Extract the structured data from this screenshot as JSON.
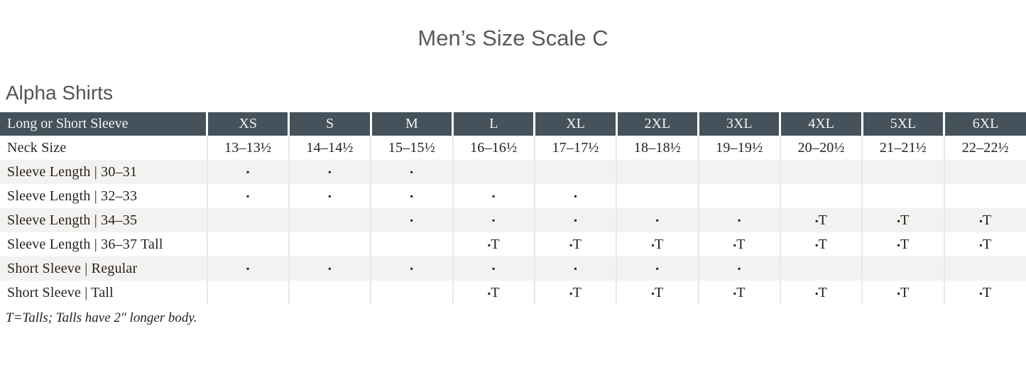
{
  "title": "Men’s Size Scale C",
  "section_heading": "Alpha Shirts",
  "footnote": "T=Talls; Talls have 2″ longer body.",
  "colors": {
    "header_bg": "#45525c",
    "header_text": "#f4f3f0",
    "row_alt_bg": "#f4f2f0",
    "grid_line": "#eae8e5",
    "heading_text": "#58595b",
    "body_text": "#26221e"
  },
  "legend": {
    "dot_mark": "▪",
    "tall_mark": "▪T"
  },
  "table": {
    "corner_label": "Long or Short Sleeve",
    "columns": [
      "XS",
      "S",
      "M",
      "L",
      "XL",
      "2XL",
      "3XL",
      "4XL",
      "5XL",
      "6XL"
    ],
    "rows": [
      {
        "label": "Neck Size",
        "cells": [
          "13–13½",
          "14–14½",
          "15–15½",
          "16–16½",
          "17–17½",
          "18–18½",
          "19–19½",
          "20–20½",
          "21–21½",
          "22–22½"
        ]
      },
      {
        "label": "Sleeve Length  |  30–31",
        "cells": [
          "▪",
          "▪",
          "▪",
          "",
          "",
          "",
          "",
          "",
          "",
          ""
        ]
      },
      {
        "label": "Sleeve Length  |  32–33",
        "cells": [
          "▪",
          "▪",
          "▪",
          "▪",
          "▪",
          "",
          "",
          "",
          "",
          ""
        ]
      },
      {
        "label": "Sleeve Length  |  34–35",
        "cells": [
          "",
          "",
          "▪",
          "▪",
          "▪",
          "▪",
          "▪",
          "▪T",
          "▪T",
          "▪T"
        ]
      },
      {
        "label": "Sleeve Length  |  36–37 Tall",
        "cells": [
          "",
          "",
          "",
          "▪T",
          "▪T",
          "▪T",
          "▪T",
          "▪T",
          "▪T",
          "▪T"
        ]
      },
      {
        "label": "Short Sleeve  |  Regular",
        "cells": [
          "▪",
          "▪",
          "▪",
          "▪",
          "▪",
          "▪",
          "▪",
          "",
          "",
          ""
        ]
      },
      {
        "label": "Short Sleeve  |  Tall",
        "cells": [
          "",
          "",
          "",
          "▪T",
          "▪T",
          "▪T",
          "▪T",
          "▪T",
          "▪T",
          "▪T"
        ]
      }
    ]
  }
}
